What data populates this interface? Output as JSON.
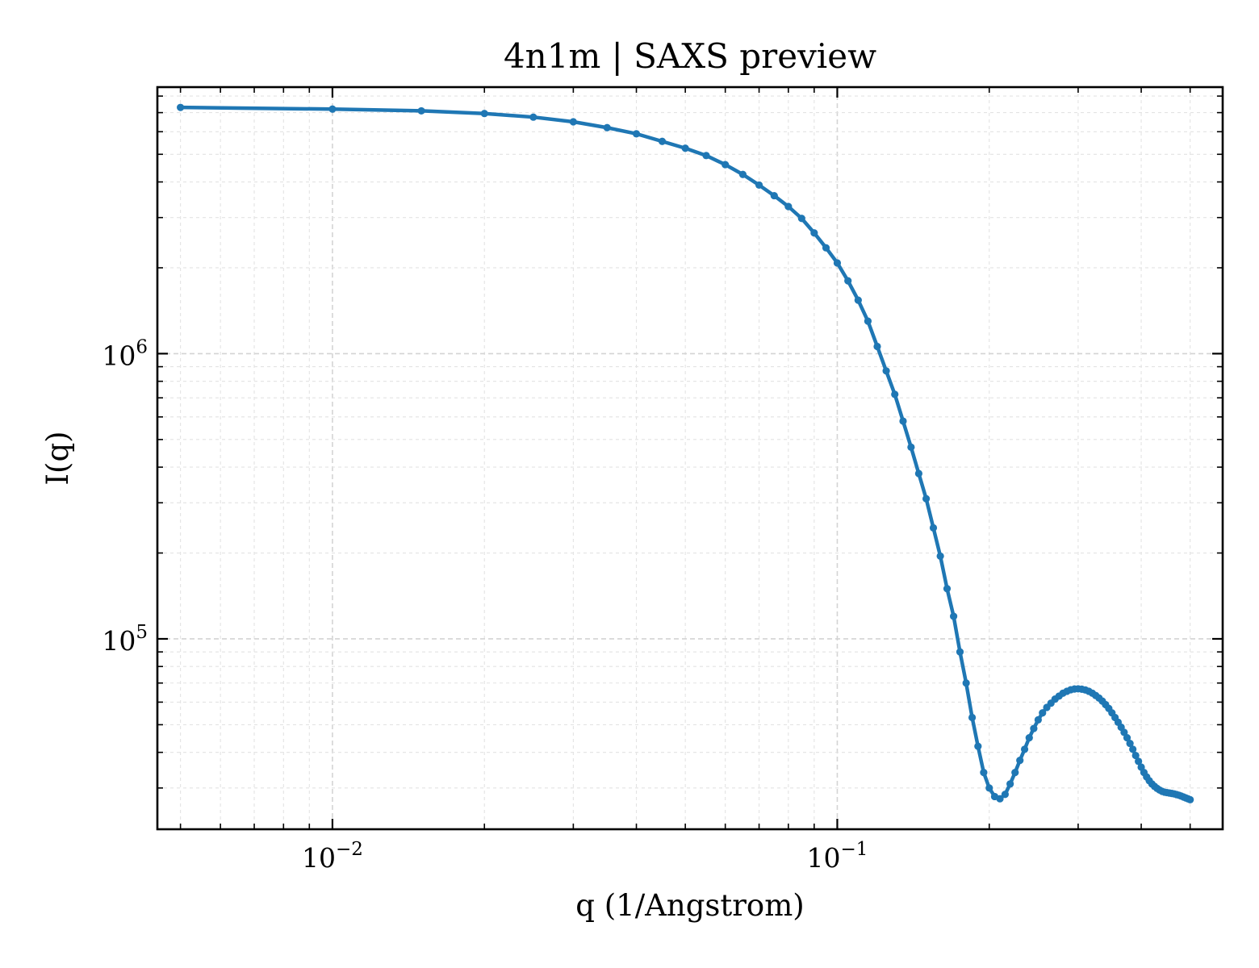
{
  "chart_data": {
    "type": "line",
    "title": "4n1m | SAXS preview",
    "xlabel": "q (1/Angstrom)",
    "ylabel": "I(q)",
    "xscale": "log",
    "yscale": "log",
    "xlim": [
      0.0045,
      0.58
    ],
    "ylim": [
      21500,
      8600000
    ],
    "x_ticks": [
      {
        "value": 0.01,
        "base": "10",
        "exp": "−2"
      },
      {
        "value": 0.1,
        "base": "10",
        "exp": "−1"
      }
    ],
    "y_ticks": [
      {
        "value": 100000,
        "base": "10",
        "exp": "5"
      },
      {
        "value": 1000000,
        "base": "10",
        "exp": "6"
      }
    ],
    "grid": true,
    "marker": "dot",
    "color": "#1f77b4",
    "series": [
      {
        "x": [
          0.005,
          0.01,
          0.015,
          0.02,
          0.025,
          0.03,
          0.035,
          0.04,
          0.045,
          0.05,
          0.055,
          0.06,
          0.065,
          0.07,
          0.075,
          0.08,
          0.085,
          0.09,
          0.095,
          0.1,
          0.105,
          0.11,
          0.115,
          0.12,
          0.125,
          0.13,
          0.135,
          0.14,
          0.145,
          0.15,
          0.155,
          0.16,
          0.165,
          0.17,
          0.175,
          0.18,
          0.185,
          0.19,
          0.195,
          0.2,
          0.205,
          0.21,
          0.215,
          0.22,
          0.225,
          0.23,
          0.235,
          0.24,
          0.245,
          0.25,
          0.255,
          0.26,
          0.265,
          0.27,
          0.275,
          0.28,
          0.285,
          0.29,
          0.295,
          0.3,
          0.305,
          0.31,
          0.315,
          0.32,
          0.325,
          0.33,
          0.335,
          0.34,
          0.345,
          0.35,
          0.355,
          0.36,
          0.365,
          0.37,
          0.375,
          0.38,
          0.385,
          0.39,
          0.395,
          0.4,
          0.405,
          0.41,
          0.415,
          0.42,
          0.425,
          0.43,
          0.435,
          0.44,
          0.445,
          0.45,
          0.455,
          0.46,
          0.465,
          0.47,
          0.475,
          0.48,
          0.485,
          0.49,
          0.495,
          0.5
        ],
        "y": [
          7300000,
          7200000,
          7100000,
          6950000,
          6750000,
          6500000,
          6200000,
          5900000,
          5550000,
          5250000,
          4950000,
          4600000,
          4250000,
          3900000,
          3580000,
          3280000,
          2980000,
          2650000,
          2350000,
          2080000,
          1800000,
          1540000,
          1300000,
          1060000,
          870000,
          720000,
          580000,
          470000,
          380000,
          310000,
          245000,
          195000,
          150000,
          120000,
          90000,
          70000,
          53000,
          42000,
          34000,
          30000,
          28000,
          27500,
          28500,
          31000,
          34000,
          37500,
          41000,
          45000,
          48500,
          52000,
          55000,
          57500,
          59500,
          61500,
          63000,
          64500,
          65500,
          66300,
          66700,
          66800,
          66600,
          66200,
          65500,
          64500,
          63300,
          62000,
          60500,
          58800,
          57000,
          55000,
          53000,
          51000,
          49000,
          47000,
          45000,
          43000,
          41000,
          39000,
          37200,
          35500,
          34000,
          32800,
          31800,
          31000,
          30400,
          29900,
          29500,
          29200,
          29000,
          28900,
          28800,
          28700,
          28600,
          28450,
          28300,
          28100,
          27900,
          27700,
          27500,
          27300
        ]
      }
    ]
  }
}
